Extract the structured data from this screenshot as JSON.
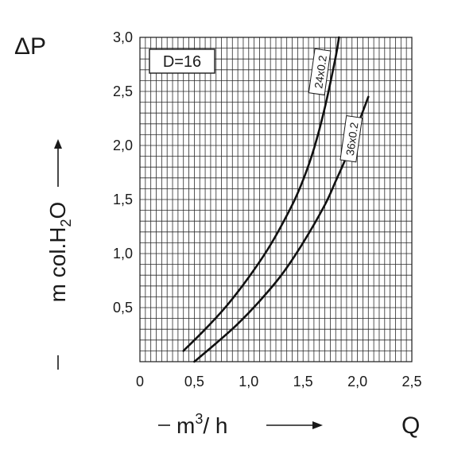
{
  "chart_data": {
    "type": "line",
    "corner_label_y": "ΔP",
    "corner_label_x": "Q",
    "ylabel": {
      "prefix": "m col.H",
      "sub": "2",
      "suffix": "O"
    },
    "xlabel": {
      "prefix": "m",
      "sup": "3",
      "suffix": "/ h"
    },
    "legend_box": "D=16",
    "xlim": [
      0,
      2.5
    ],
    "ylim": [
      0,
      3.0
    ],
    "x_ticks": [
      "0",
      "0,5",
      "1,0",
      "1,5",
      "2,0",
      "2,5"
    ],
    "y_ticks": [
      "0,5",
      "1,0",
      "1,5",
      "2,0",
      "2,5",
      "3,0"
    ],
    "grid": true,
    "series": [
      {
        "name": "24x0.2",
        "x": [
          0.4,
          0.6,
          0.8,
          1.0,
          1.2,
          1.4,
          1.5,
          1.6,
          1.7,
          1.8,
          1.83
        ],
        "y": [
          0.1,
          0.3,
          0.52,
          0.78,
          1.08,
          1.45,
          1.68,
          1.97,
          2.35,
          2.82,
          3.0
        ]
      },
      {
        "name": "36x0.2",
        "x": [
          0.5,
          0.7,
          0.9,
          1.1,
          1.3,
          1.5,
          1.7,
          1.8,
          1.9,
          2.0,
          2.1
        ],
        "y": [
          0.0,
          0.17,
          0.35,
          0.56,
          0.8,
          1.1,
          1.45,
          1.67,
          1.9,
          2.18,
          2.45
        ]
      }
    ]
  }
}
